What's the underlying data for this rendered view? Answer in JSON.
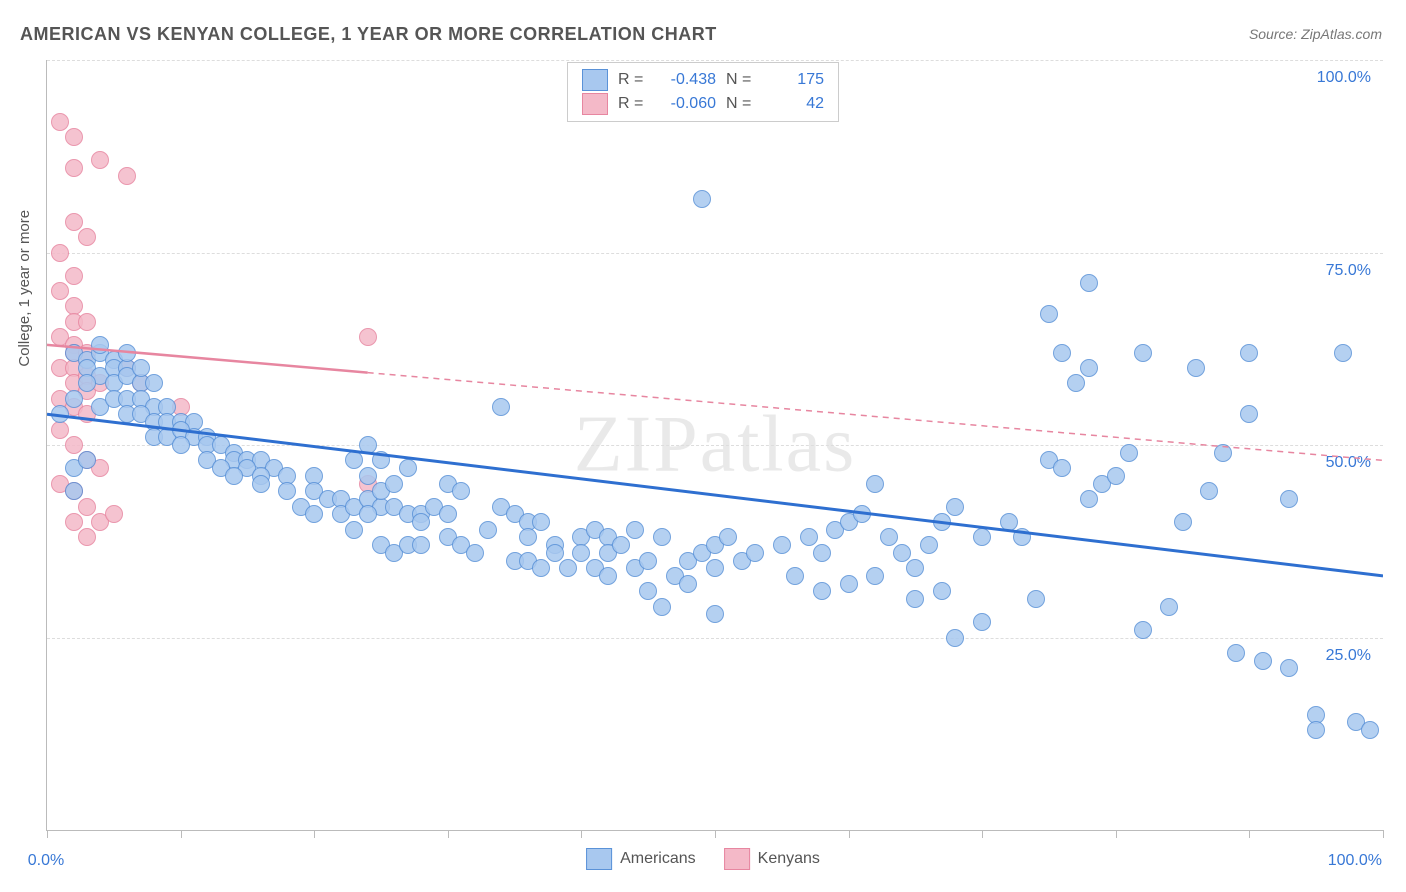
{
  "title": "AMERICAN VS KENYAN COLLEGE, 1 YEAR OR MORE CORRELATION CHART",
  "source": "Source: ZipAtlas.com",
  "ylabel": "College, 1 year or more",
  "watermark": "ZIPatlas",
  "chart": {
    "type": "scatter",
    "xlim": [
      0,
      100
    ],
    "ylim": [
      0,
      100
    ],
    "ytick_labels": [
      "25.0%",
      "50.0%",
      "75.0%",
      "100.0%"
    ],
    "ytick_values": [
      25,
      50,
      75,
      100
    ],
    "xtick_positions": [
      0,
      10,
      20,
      30,
      40,
      50,
      60,
      70,
      80,
      90,
      100
    ],
    "x_min_label": "0.0%",
    "x_max_label": "100.0%",
    "background_color": "#ffffff",
    "grid_color": "#dddddd",
    "marker_radius": 9,
    "marker_stroke_width": 1.5,
    "series": {
      "americans": {
        "label": "Americans",
        "fill_color": "#a8c8ef",
        "stroke_color": "#5a92d8",
        "line_color": "#2e6fd0",
        "line_width": 3,
        "line_dash": "solid",
        "regression": {
          "x1": 0,
          "y1": 54,
          "x2": 100,
          "y2": 33
        },
        "R": "-0.438",
        "N": "175",
        "points": [
          [
            2,
            62
          ],
          [
            3,
            61
          ],
          [
            3,
            60
          ],
          [
            4,
            62
          ],
          [
            5,
            61
          ],
          [
            4,
            59
          ],
          [
            5,
            60
          ],
          [
            6,
            60
          ],
          [
            3,
            58
          ],
          [
            5,
            58
          ],
          [
            6,
            59
          ],
          [
            7,
            58
          ],
          [
            4,
            63
          ],
          [
            6,
            62
          ],
          [
            7,
            60
          ],
          [
            8,
            58
          ],
          [
            4,
            55
          ],
          [
            5,
            56
          ],
          [
            6,
            56
          ],
          [
            7,
            56
          ],
          [
            8,
            55
          ],
          [
            9,
            55
          ],
          [
            6,
            54
          ],
          [
            7,
            54
          ],
          [
            8,
            53
          ],
          [
            9,
            53
          ],
          [
            10,
            53
          ],
          [
            11,
            53
          ],
          [
            8,
            51
          ],
          [
            9,
            51
          ],
          [
            10,
            52
          ],
          [
            11,
            51
          ],
          [
            12,
            51
          ],
          [
            10,
            50
          ],
          [
            12,
            50
          ],
          [
            13,
            50
          ],
          [
            14,
            49
          ],
          [
            12,
            48
          ],
          [
            14,
            48
          ],
          [
            15,
            48
          ],
          [
            16,
            48
          ],
          [
            13,
            47
          ],
          [
            15,
            47
          ],
          [
            17,
            47
          ],
          [
            14,
            46
          ],
          [
            16,
            46
          ],
          [
            18,
            46
          ],
          [
            20,
            46
          ],
          [
            2,
            47
          ],
          [
            3,
            48
          ],
          [
            2,
            44
          ],
          [
            1,
            54
          ],
          [
            2,
            56
          ],
          [
            16,
            45
          ],
          [
            18,
            44
          ],
          [
            20,
            44
          ],
          [
            21,
            43
          ],
          [
            22,
            43
          ],
          [
            23,
            48
          ],
          [
            19,
            42
          ],
          [
            20,
            41
          ],
          [
            22,
            41
          ],
          [
            23,
            42
          ],
          [
            24,
            43
          ],
          [
            25,
            42
          ],
          [
            24,
            41
          ],
          [
            26,
            42
          ],
          [
            25,
            44
          ],
          [
            27,
            41
          ],
          [
            28,
            41
          ],
          [
            24,
            46
          ],
          [
            26,
            45
          ],
          [
            27,
            47
          ],
          [
            24,
            50
          ],
          [
            25,
            48
          ],
          [
            23,
            39
          ],
          [
            25,
            37
          ],
          [
            26,
            36
          ],
          [
            27,
            37
          ],
          [
            28,
            37
          ],
          [
            29,
            42
          ],
          [
            30,
            41
          ],
          [
            28,
            40
          ],
          [
            30,
            38
          ],
          [
            31,
            37
          ],
          [
            32,
            36
          ],
          [
            33,
            39
          ],
          [
            30,
            45
          ],
          [
            31,
            44
          ],
          [
            34,
            55
          ],
          [
            34,
            42
          ],
          [
            35,
            41
          ],
          [
            36,
            40
          ],
          [
            37,
            40
          ],
          [
            36,
            38
          ],
          [
            38,
            37
          ],
          [
            35,
            35
          ],
          [
            36,
            35
          ],
          [
            37,
            34
          ],
          [
            38,
            36
          ],
          [
            40,
            38
          ],
          [
            41,
            39
          ],
          [
            42,
            38
          ],
          [
            40,
            36
          ],
          [
            42,
            36
          ],
          [
            39,
            34
          ],
          [
            41,
            34
          ],
          [
            42,
            33
          ],
          [
            44,
            34
          ],
          [
            45,
            35
          ],
          [
            43,
            37
          ],
          [
            44,
            39
          ],
          [
            46,
            38
          ],
          [
            45,
            31
          ],
          [
            46,
            29
          ],
          [
            47,
            33
          ],
          [
            48,
            35
          ],
          [
            49,
            36
          ],
          [
            50,
            37
          ],
          [
            51,
            38
          ],
          [
            48,
            32
          ],
          [
            50,
            34
          ],
          [
            52,
            35
          ],
          [
            50,
            28
          ],
          [
            53,
            36
          ],
          [
            55,
            37
          ],
          [
            49,
            82
          ],
          [
            57,
            38
          ],
          [
            58,
            36
          ],
          [
            59,
            39
          ],
          [
            60,
            40
          ],
          [
            61,
            41
          ],
          [
            56,
            33
          ],
          [
            58,
            31
          ],
          [
            60,
            32
          ],
          [
            62,
            33
          ],
          [
            62,
            45
          ],
          [
            63,
            38
          ],
          [
            64,
            36
          ],
          [
            65,
            34
          ],
          [
            66,
            37
          ],
          [
            67,
            40
          ],
          [
            68,
            42
          ],
          [
            68,
            25
          ],
          [
            70,
            27
          ],
          [
            65,
            30
          ],
          [
            67,
            31
          ],
          [
            70,
            38
          ],
          [
            72,
            40
          ],
          [
            73,
            38
          ],
          [
            74,
            30
          ],
          [
            75,
            48
          ],
          [
            76,
            47
          ],
          [
            75,
            67
          ],
          [
            76,
            62
          ],
          [
            77,
            58
          ],
          [
            78,
            60
          ],
          [
            79,
            45
          ],
          [
            78,
            43
          ],
          [
            80,
            46
          ],
          [
            81,
            49
          ],
          [
            82,
            62
          ],
          [
            82,
            26
          ],
          [
            84,
            29
          ],
          [
            85,
            40
          ],
          [
            86,
            60
          ],
          [
            87,
            44
          ],
          [
            88,
            49
          ],
          [
            89,
            23
          ],
          [
            90,
            54
          ],
          [
            90,
            62
          ],
          [
            91,
            22
          ],
          [
            93,
            21
          ],
          [
            93,
            43
          ],
          [
            95,
            15
          ],
          [
            95,
            13
          ],
          [
            97,
            62
          ],
          [
            98,
            14
          ],
          [
            99,
            13
          ],
          [
            78,
            71
          ]
        ]
      },
      "kenyans": {
        "label": "Kenyans",
        "fill_color": "#f4b9c8",
        "stroke_color": "#e786a0",
        "line_color": "#e786a0",
        "line_width": 2.5,
        "line_dash": "dashed",
        "regression": {
          "x1": 0,
          "y1": 63,
          "x2": 100,
          "y2": 48
        },
        "regression_solid_until_x": 24,
        "R": "-0.060",
        "N": "42",
        "points": [
          [
            1,
            92
          ],
          [
            2,
            90
          ],
          [
            2,
            86
          ],
          [
            2,
            79
          ],
          [
            3,
            77
          ],
          [
            1,
            75
          ],
          [
            2,
            72
          ],
          [
            4,
            87
          ],
          [
            6,
            85
          ],
          [
            1,
            70
          ],
          [
            2,
            68
          ],
          [
            2,
            66
          ],
          [
            3,
            66
          ],
          [
            1,
            64
          ],
          [
            2,
            63
          ],
          [
            2,
            62
          ],
          [
            3,
            62
          ],
          [
            1,
            60
          ],
          [
            2,
            60
          ],
          [
            2,
            58
          ],
          [
            3,
            59
          ],
          [
            3,
            57
          ],
          [
            4,
            58
          ],
          [
            1,
            56
          ],
          [
            2,
            55
          ],
          [
            3,
            54
          ],
          [
            1,
            52
          ],
          [
            2,
            50
          ],
          [
            3,
            48
          ],
          [
            1,
            45
          ],
          [
            2,
            44
          ],
          [
            4,
            47
          ],
          [
            3,
            42
          ],
          [
            2,
            40
          ],
          [
            4,
            40
          ],
          [
            3,
            38
          ],
          [
            5,
            41
          ],
          [
            6,
            60
          ],
          [
            7,
            58
          ],
          [
            10,
            55
          ],
          [
            24,
            45
          ],
          [
            24,
            64
          ]
        ]
      }
    }
  },
  "legend_top": [
    {
      "swatch_fill": "#a8c8ef",
      "swatch_stroke": "#5a92d8",
      "R_label": "R =",
      "R": "-0.438",
      "N_label": "N =",
      "N": "175"
    },
    {
      "swatch_fill": "#f4b9c8",
      "swatch_stroke": "#e786a0",
      "R_label": "R =",
      "R": "-0.060",
      "N_label": "N =",
      "N": "42"
    }
  ],
  "legend_bottom": [
    {
      "swatch_fill": "#a8c8ef",
      "swatch_stroke": "#5a92d8",
      "label": "Americans"
    },
    {
      "swatch_fill": "#f4b9c8",
      "swatch_stroke": "#e786a0",
      "label": "Kenyans"
    }
  ]
}
